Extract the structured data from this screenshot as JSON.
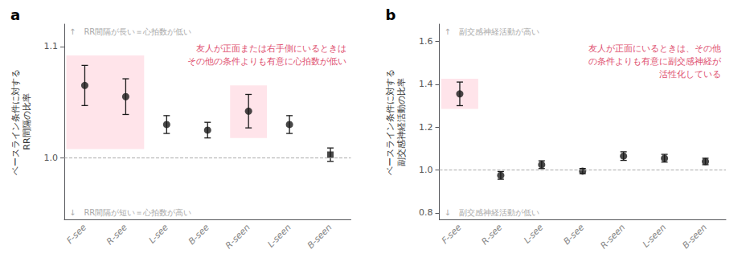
{
  "chart_data": [
    {
      "type": "scatter",
      "title": "a",
      "categories": [
        "F-see",
        "R-see",
        "L-see",
        "B-see",
        "R-seen",
        "L-seen",
        "B-seen"
      ],
      "values": [
        1.065,
        1.055,
        1.03,
        1.025,
        1.042,
        1.03,
        1.003
      ],
      "errors": [
        0.018,
        0.016,
        0.008,
        0.007,
        0.015,
        0.008,
        0.006
      ],
      "markers": [
        "circle",
        "circle",
        "circle",
        "circle",
        "circle",
        "circle",
        "square"
      ],
      "color": "#1a1a1a",
      "ylim": [
        0.945,
        1.12
      ],
      "yticks": [
        {
          "value": 1.0,
          "label": "1.0"
        },
        1.1
      ],
      "ylabel": "ベースライン条件に対する\nRR間隔の比率",
      "reference_line": 1.0,
      "highlights": [
        {
          "from": "F-see",
          "to": "R-see",
          "y0": 1.008,
          "y1": 1.092,
          "color": "#FFE4EA"
        },
        {
          "from": "R-seen",
          "to": "R-seen",
          "y0": 1.018,
          "y1": 1.065,
          "color": "#FFE4EA"
        }
      ],
      "annotation_top": "↑　RR間隔が長い＝心拍数が低い",
      "annotation_bottom": "↓　RR間隔が短い＝心拍数が高い",
      "annotation_main": {
        "text": "友人が正面または右手側にいるときは\nその他の条件よりも有意に心拍数が低い",
        "color": "#E05070"
      },
      "grid": false
    },
    {
      "type": "scatter",
      "title": "b",
      "categories": [
        "F-see",
        "R-see",
        "L-see",
        "B-see",
        "R-seen",
        "L-seen",
        "B-seen"
      ],
      "values": [
        1.355,
        0.975,
        1.025,
        0.995,
        1.065,
        1.055,
        1.04
      ],
      "errors": [
        0.055,
        0.018,
        0.018,
        0.012,
        0.02,
        0.018,
        0.015
      ],
      "markers": [
        "circle",
        "circle",
        "circle",
        "circle",
        "circle",
        "circle",
        "circle"
      ],
      "color": "#1a1a1a",
      "ylim": [
        0.77,
        1.68
      ],
      "yticks": [
        0.8,
        {
          "value": 1.0,
          "label": "1.0"
        },
        1.2,
        1.4,
        1.6
      ],
      "ylabel": "ベースライン条件に対する\n副交感神経活動の比率",
      "reference_line": 1.0,
      "highlights": [
        {
          "from": "F-see",
          "to": "F-see",
          "y0": 1.285,
          "y1": 1.425,
          "color": "#FFE4EA"
        }
      ],
      "annotation_top": "↑　副交感神経活動が高い",
      "annotation_bottom": "↓　副交感神経活動が低い",
      "annotation_main": {
        "text": "友人が正面にいるときは、その他\nの条件よりも有意に副交感神経が\n活性化している",
        "color": "#E05070"
      },
      "grid": false
    }
  ]
}
